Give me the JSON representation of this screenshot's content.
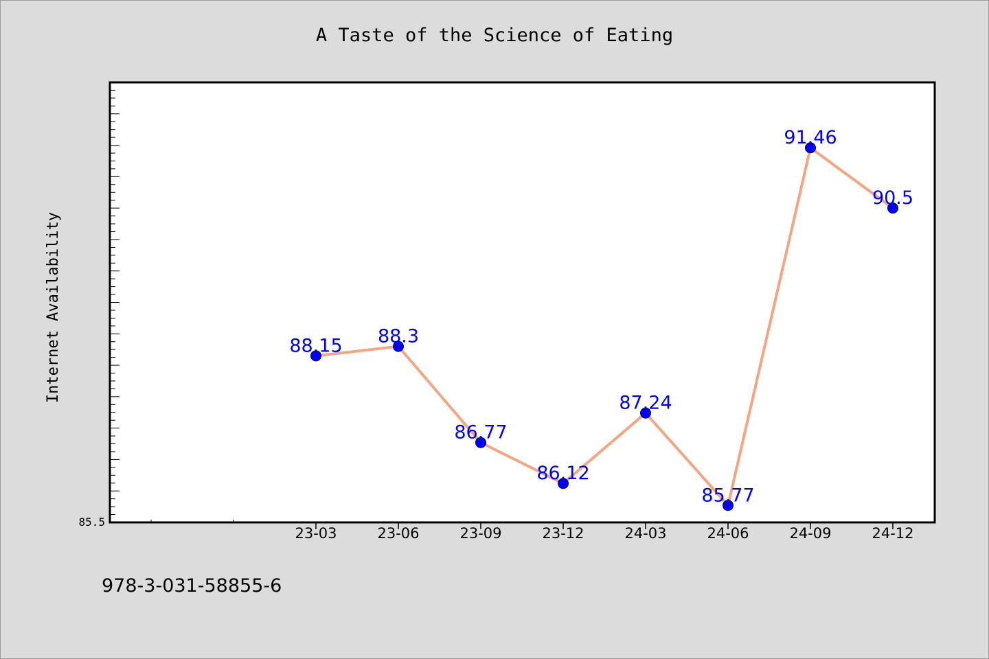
{
  "chart_data": {
    "type": "line",
    "title": "A Taste of the Science of Eating",
    "xlabel": "",
    "ylabel": "Internet Availability",
    "categories": [
      "23-03",
      "23-06",
      "23-09",
      "23-12",
      "24-03",
      "24-06",
      "24-09",
      "24-12"
    ],
    "series": [
      {
        "values": [
          88.15,
          88.3,
          86.77,
          86.12,
          87.24,
          85.77,
          91.46,
          90.5
        ]
      }
    ],
    "data_labels": [
      "88.15",
      "88.3",
      "86.77",
      "86.12",
      "87.24",
      "85.77",
      "91.46",
      "90.5"
    ],
    "ytick_labels": [
      "85.5"
    ],
    "ylim": [
      85.5,
      92.5
    ],
    "grid": false,
    "colors": {
      "line": "#f4a582",
      "marker": "#0000ff",
      "label": "#0000ff",
      "background": "#dcdcdc",
      "plot_background": "#ffffff"
    }
  },
  "footer": {
    "isbn": "978-3-031-58855-6"
  }
}
